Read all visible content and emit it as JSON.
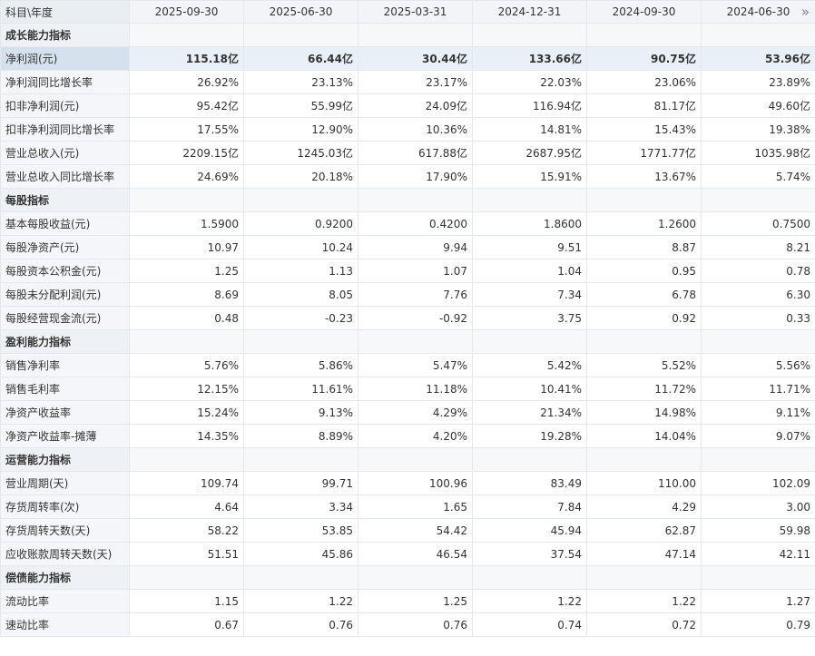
{
  "header": {
    "corner_label": "科目\\年度",
    "dates": [
      "2025-09-30",
      "2025-06-30",
      "2025-03-31",
      "2024-12-31",
      "2024-09-30",
      "2024-06-30"
    ],
    "more_icon": "double-chevron-right-icon"
  },
  "rows": [
    {
      "label": "成长能力指标",
      "section": true
    },
    {
      "label": "净利润(元)",
      "values": [
        "115.18亿",
        "66.44亿",
        "30.44亿",
        "133.66亿",
        "90.75亿",
        "53.96亿"
      ],
      "highlight": true
    },
    {
      "label": "净利润同比增长率",
      "values": [
        "26.92%",
        "23.13%",
        "23.17%",
        "22.03%",
        "23.06%",
        "23.89%"
      ]
    },
    {
      "label": "扣非净利润(元)",
      "values": [
        "95.42亿",
        "55.99亿",
        "24.09亿",
        "116.94亿",
        "81.17亿",
        "49.60亿"
      ]
    },
    {
      "label": "扣非净利润同比增长率",
      "values": [
        "17.55%",
        "12.90%",
        "10.36%",
        "14.81%",
        "15.43%",
        "19.38%"
      ]
    },
    {
      "label": "营业总收入(元)",
      "values": [
        "2209.15亿",
        "1245.03亿",
        "617.88亿",
        "2687.95亿",
        "1771.77亿",
        "1035.98亿"
      ]
    },
    {
      "label": "营业总收入同比增长率",
      "values": [
        "24.69%",
        "20.18%",
        "17.90%",
        "15.91%",
        "13.67%",
        "5.74%"
      ]
    },
    {
      "label": "每股指标",
      "section": true
    },
    {
      "label": "基本每股收益(元)",
      "values": [
        "1.5900",
        "0.9200",
        "0.4200",
        "1.8600",
        "1.2600",
        "0.7500"
      ]
    },
    {
      "label": "每股净资产(元)",
      "values": [
        "10.97",
        "10.24",
        "9.94",
        "9.51",
        "8.87",
        "8.21"
      ]
    },
    {
      "label": "每股资本公积金(元)",
      "values": [
        "1.25",
        "1.13",
        "1.07",
        "1.04",
        "0.95",
        "0.78"
      ]
    },
    {
      "label": "每股未分配利润(元)",
      "values": [
        "8.69",
        "8.05",
        "7.76",
        "7.34",
        "6.78",
        "6.30"
      ]
    },
    {
      "label": "每股经营现金流(元)",
      "values": [
        "0.48",
        "-0.23",
        "-0.92",
        "3.75",
        "0.92",
        "0.33"
      ]
    },
    {
      "label": "盈利能力指标",
      "section": true
    },
    {
      "label": "销售净利率",
      "values": [
        "5.76%",
        "5.86%",
        "5.47%",
        "5.42%",
        "5.52%",
        "5.56%"
      ]
    },
    {
      "label": "销售毛利率",
      "values": [
        "12.15%",
        "11.61%",
        "11.18%",
        "10.41%",
        "11.72%",
        "11.71%"
      ]
    },
    {
      "label": "净资产收益率",
      "values": [
        "15.24%",
        "9.13%",
        "4.29%",
        "21.34%",
        "14.98%",
        "9.11%"
      ]
    },
    {
      "label": "净资产收益率-摊薄",
      "values": [
        "14.35%",
        "8.89%",
        "4.20%",
        "19.28%",
        "14.04%",
        "9.07%"
      ]
    },
    {
      "label": "运营能力指标",
      "section": true
    },
    {
      "label": "营业周期(天)",
      "values": [
        "109.74",
        "99.71",
        "100.96",
        "83.49",
        "110.00",
        "102.09"
      ]
    },
    {
      "label": "存货周转率(次)",
      "values": [
        "4.64",
        "3.34",
        "1.65",
        "7.84",
        "4.29",
        "3.00"
      ]
    },
    {
      "label": "存货周转天数(天)",
      "values": [
        "58.22",
        "53.85",
        "54.42",
        "45.94",
        "62.87",
        "59.98"
      ]
    },
    {
      "label": "应收账款周转天数(天)",
      "values": [
        "51.51",
        "45.86",
        "46.54",
        "37.54",
        "47.14",
        "42.11"
      ]
    },
    {
      "label": "偿债能力指标",
      "section": true
    },
    {
      "label": "流动比率",
      "values": [
        "1.15",
        "1.22",
        "1.25",
        "1.22",
        "1.22",
        "1.27"
      ]
    },
    {
      "label": "速动比率",
      "values": [
        "0.67",
        "0.76",
        "0.76",
        "0.74",
        "0.72",
        "0.79"
      ]
    }
  ]
}
